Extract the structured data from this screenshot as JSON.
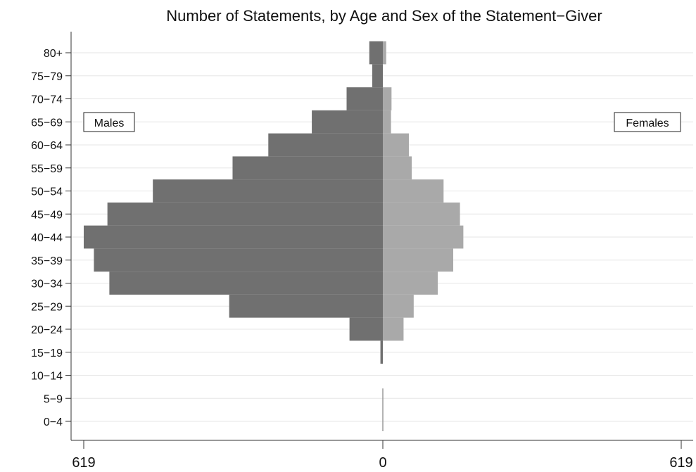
{
  "chart_data": {
    "type": "bar",
    "orientation": "horizontal",
    "title": "Number of Statements, by Age and Sex of the Statement−Giver",
    "categories": [
      "80+",
      "75−79",
      "70−74",
      "65−69",
      "60−64",
      "55−59",
      "50−54",
      "45−49",
      "40−44",
      "35−39",
      "30−34",
      "25−29",
      "20−24",
      "15−19",
      "10−14",
      "5−9",
      "0−4"
    ],
    "series": [
      {
        "name": "Males",
        "values": [
          28,
          22,
          75,
          147,
          237,
          311,
          476,
          570,
          619,
          598,
          566,
          318,
          69,
          5,
          0,
          0,
          0
        ],
        "color": "#707070"
      },
      {
        "name": "Females",
        "values": [
          7,
          0,
          18,
          17,
          54,
          60,
          126,
          160,
          167,
          146,
          114,
          64,
          43,
          0,
          0,
          0,
          0
        ],
        "color": "#a9a9a9"
      }
    ],
    "xlim": [
      -619,
      619
    ],
    "x_tick_labels": [
      "619",
      "0",
      "619"
    ],
    "x_tick_values": [
      -619,
      0,
      619
    ],
    "legend": {
      "left": "Males",
      "right": "Females",
      "placement": "inside-top"
    },
    "grid": true
  }
}
